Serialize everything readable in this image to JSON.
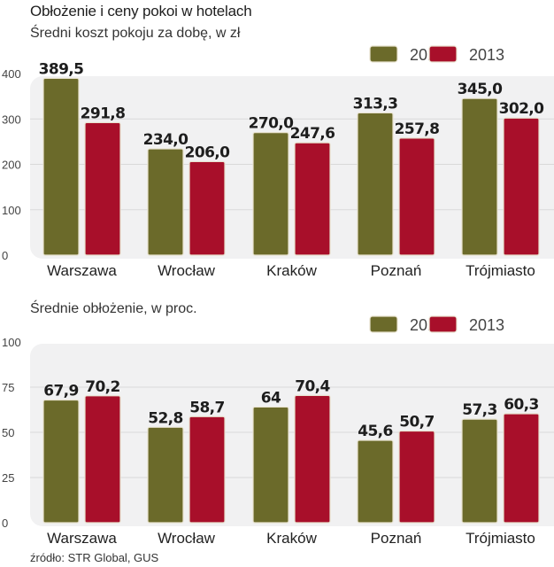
{
  "header": {
    "title": "Obłożenie i ceny pokoi w hotelach"
  },
  "footer": {
    "source": "źródło: STR Global, GUS"
  },
  "colors": {
    "2012": "#6b6a2a",
    "2013": "#a80f2a",
    "panel": "#f1f1f2",
    "grid": "#d9d9d9"
  },
  "chart_data": [
    {
      "type": "bar",
      "title": "Średni koszt pokoju za dobę, w zł",
      "xlabel": "",
      "ylabel": "",
      "categories": [
        "Warszawa",
        "Wrocław",
        "Kraków",
        "Poznań",
        "Trójmiasto"
      ],
      "series": [
        {
          "name": "2012",
          "values": [
            389.5,
            234.0,
            270.0,
            313.3,
            345.0
          ],
          "labels": [
            "389,5",
            "234,0",
            "270,0",
            "313,3",
            "345,0"
          ]
        },
        {
          "name": "2013",
          "values": [
            291.8,
            206.0,
            247.6,
            257.8,
            302.0
          ],
          "labels": [
            "291,8",
            "206,0",
            "247,6",
            "257,8",
            "302,0"
          ]
        }
      ],
      "ylim": [
        0,
        400
      ],
      "yticks": [
        0,
        100,
        200,
        300,
        400
      ],
      "ytick_labels": [
        "0",
        "100",
        "200",
        "300",
        "400"
      ],
      "grid": true,
      "legend": [
        "2012",
        "2013"
      ],
      "legend_position": "top-right"
    },
    {
      "type": "bar",
      "title": "Średnie obłożenie, w proc.",
      "xlabel": "",
      "ylabel": "",
      "categories": [
        "Warszawa",
        "Wrocław",
        "Kraków",
        "Poznań",
        "Trójmiasto"
      ],
      "series": [
        {
          "name": "2012",
          "values": [
            67.9,
            52.8,
            64,
            45.6,
            57.3
          ],
          "labels": [
            "67,9",
            "52,8",
            "64",
            "45,6",
            "57,3"
          ]
        },
        {
          "name": "2013",
          "values": [
            70.2,
            58.7,
            70.4,
            50.7,
            60.3
          ],
          "labels": [
            "70,2",
            "58,7",
            "70,4",
            "50,7",
            "60,3"
          ]
        }
      ],
      "ylim": [
        0,
        100
      ],
      "yticks": [
        0,
        25,
        50,
        75,
        100
      ],
      "ytick_labels": [
        "0",
        "25",
        "50",
        "75",
        "100"
      ],
      "grid": true,
      "legend": [
        "2012",
        "2013"
      ],
      "legend_position": "top-right"
    }
  ]
}
